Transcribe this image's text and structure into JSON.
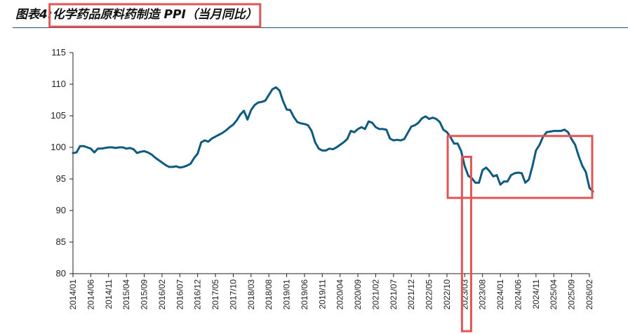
{
  "figure": {
    "prefix": "图表4:",
    "title": "化学药品原料药制造 PPI（当月同比）"
  },
  "colors": {
    "line": "#0e5a80",
    "highlight_box": "#e05555",
    "axis": "#222222"
  },
  "chart_data": {
    "type": "line",
    "title": "化学药品原料药制造 PPI（当月同比）",
    "xlabel": "",
    "ylabel": "",
    "ylim": [
      80,
      115
    ],
    "yticks": [
      80,
      85,
      90,
      95,
      100,
      105,
      110,
      115
    ],
    "grid": false,
    "legend": "none",
    "xtick_labels": [
      "2014/01",
      "2014/06",
      "2014/11",
      "2015/04",
      "2015/09",
      "2016/02",
      "2016/07",
      "2016/12",
      "2017/05",
      "2017/10",
      "2018/03",
      "2018/08",
      "2019/01",
      "2019/06",
      "2019/11",
      "2020/04",
      "2020/09",
      "2021/02",
      "2021/07",
      "2021/12",
      "2022/05",
      "2022/10",
      "2023/03",
      "2023/08",
      "2024/01",
      "2024/06",
      "2024/11",
      "2025/04",
      "2025/09",
      "2026/02"
    ],
    "series": [
      {
        "name": "",
        "start": "2014/01",
        "frequency": "monthly",
        "values": [
          99.1,
          99.2,
          100.2,
          100.2,
          100.0,
          99.8,
          99.2,
          99.8,
          99.8,
          99.9,
          100.0,
          100.0,
          99.9,
          100.0,
          100.0,
          99.8,
          99.9,
          99.7,
          99.1,
          99.3,
          99.4,
          99.2,
          98.9,
          98.4,
          98.0,
          97.6,
          97.2,
          96.9,
          96.9,
          97.0,
          96.8,
          96.9,
          97.1,
          97.4,
          98.3,
          99.0,
          100.8,
          101.1,
          100.9,
          101.4,
          101.7,
          102.0,
          102.3,
          102.7,
          103.2,
          103.6,
          104.3,
          105.2,
          105.8,
          104.4,
          105.9,
          106.7,
          107.1,
          107.2,
          107.4,
          108.3,
          109.2,
          109.5,
          109.0,
          107.3,
          106.0,
          105.9,
          104.8,
          104.0,
          103.8,
          103.7,
          103.5,
          102.6,
          100.8,
          99.8,
          99.5,
          99.5,
          99.8,
          99.7,
          100.0,
          100.4,
          100.8,
          101.3,
          102.6,
          102.4,
          102.9,
          103.2,
          102.9,
          104.1,
          103.9,
          103.2,
          102.9,
          102.9,
          102.8,
          101.4,
          101.1,
          101.2,
          101.1,
          101.3,
          102.3,
          103.3,
          103.5,
          103.9,
          104.6,
          104.9,
          104.5,
          104.7,
          104.5,
          104.0,
          102.8,
          102.4,
          101.6,
          100.6,
          100.6,
          99.4,
          97.0,
          95.5,
          95.1,
          94.4,
          94.4,
          96.4,
          96.8,
          96.2,
          95.4,
          95.6,
          94.1,
          94.6,
          94.6,
          95.6,
          95.9,
          96.0,
          95.9,
          94.4,
          94.9,
          97.0,
          99.5,
          100.4,
          101.7,
          102.4,
          102.5,
          102.6,
          102.6,
          102.6,
          102.8,
          102.4,
          101.3,
          100.4,
          98.6,
          97.1,
          96.1,
          93.6,
          93.0
        ]
      }
    ],
    "annotations": [
      {
        "type": "rect",
        "x_range": [
          "2022/11",
          "2026/02"
        ],
        "y_range": [
          92,
          101.8
        ]
      },
      {
        "type": "rect",
        "x_range": [
          "2023/03",
          "2023/04"
        ],
        "y_range": [
          80,
          98.5
        ]
      }
    ]
  }
}
